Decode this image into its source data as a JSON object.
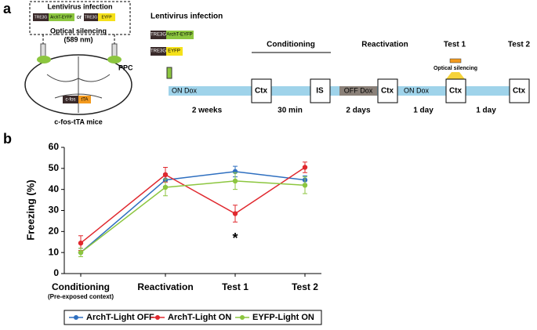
{
  "panel_a": {
    "label": "a",
    "left": {
      "title": "Lentivirus infection",
      "constructs": [
        {
          "promoter": "TRE3G",
          "gene": "ArchT-EYFP"
        },
        {
          "promoter": "TRE3G",
          "gene": "EYFP"
        }
      ],
      "or": "or",
      "optical": [
        "Optical silencing",
        "(589 nm)"
      ],
      "region": "PPC",
      "mouse_construct": {
        "promoter": "c-fos",
        "gene": "tTA"
      },
      "mouse": "c-fos-tTA mice"
    },
    "timeline": {
      "title": "Lentivirus infection",
      "constructs": [
        {
          "promoter": "TRE3G",
          "gene": "ArchT-EYFP"
        },
        {
          "promoter": "TRE3G",
          "gene": "EYFP"
        }
      ],
      "phases": [
        "Conditioning",
        "Reactivation",
        "Test 1",
        "Test 2"
      ],
      "bar_labels": [
        "ON Dox",
        "OFF Dox",
        "ON Dox"
      ],
      "boxes": [
        "Ctx",
        "IS",
        "Ctx",
        "Ctx",
        "Ctx"
      ],
      "light": "Optical silencing",
      "durations": [
        "2 weeks",
        "30 min",
        "2 days",
        "1 day",
        "1 day"
      ]
    }
  },
  "panel_b_label": "b",
  "chart_data": {
    "type": "line",
    "y_label": "Freezing (%)",
    "categories": [
      "Conditioning",
      "Reactivation",
      "Test 1",
      "Test 2"
    ],
    "category_note": "(Pre-exposed context)",
    "ylim": [
      0,
      60
    ],
    "yticks": [
      0,
      10,
      20,
      30,
      40,
      50,
      60
    ],
    "series": [
      {
        "name": "ArchT-Light OFF",
        "color": "#2e6fc0",
        "values": [
          10,
          44.5,
          48.5,
          44.5
        ],
        "errors": [
          2,
          3,
          2.5,
          2
        ]
      },
      {
        "name": "ArchT-Light ON",
        "color": "#e0282e",
        "values": [
          14.5,
          47,
          28.5,
          50.5
        ],
        "errors": [
          3.5,
          3.5,
          4,
          2.5
        ]
      },
      {
        "name": "EYFP-Light ON",
        "color": "#8cc63f",
        "values": [
          10,
          41,
          44,
          42
        ],
        "errors": [
          2,
          4,
          4,
          4
        ]
      }
    ],
    "annotation": "*"
  }
}
